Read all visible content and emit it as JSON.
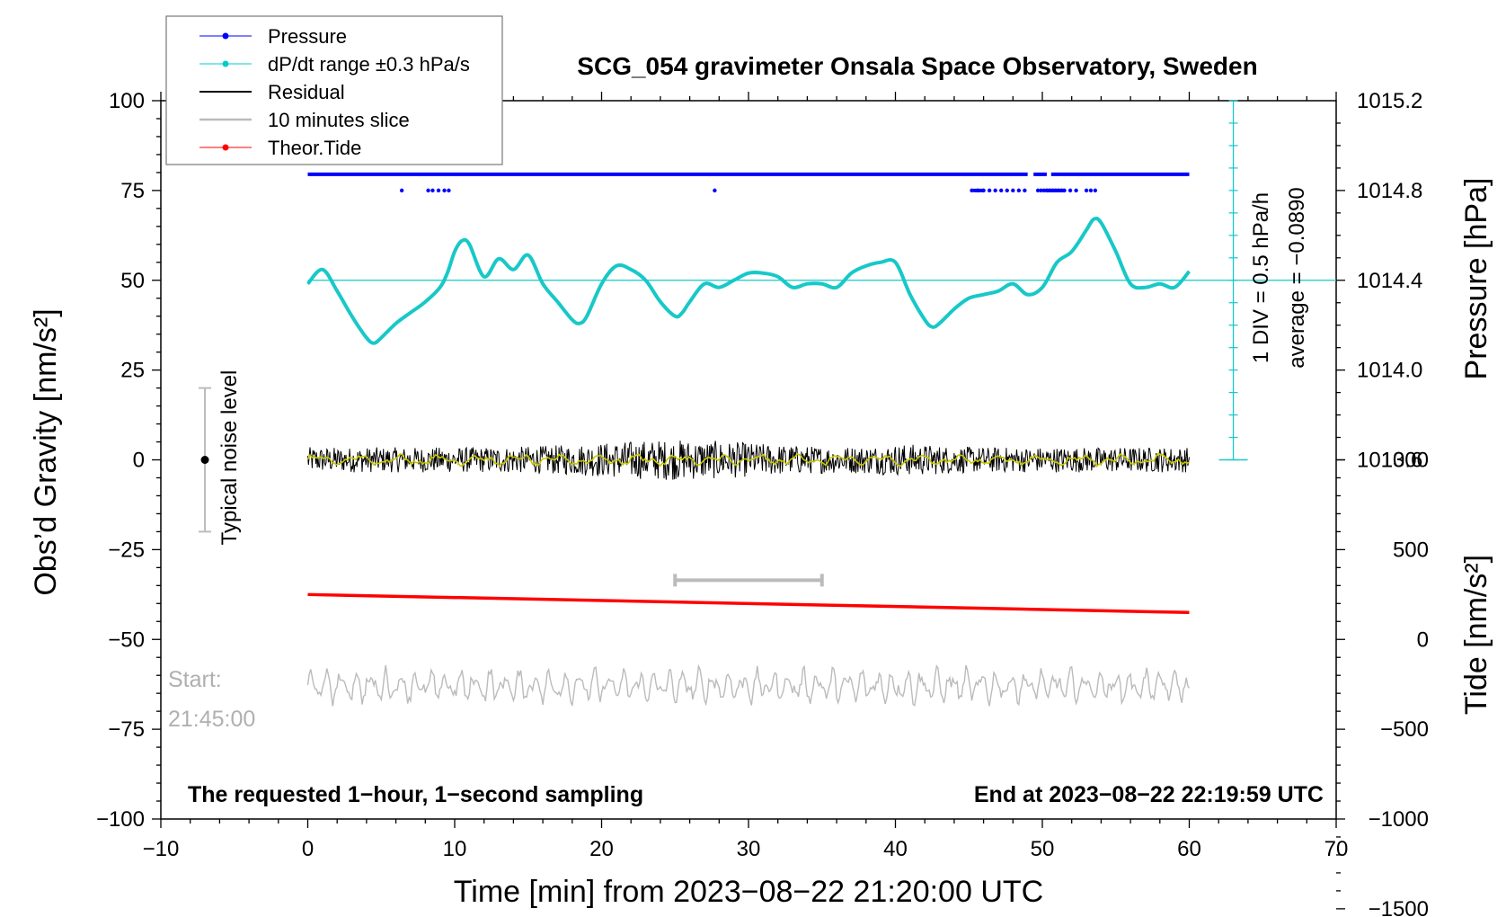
{
  "chart_data": {
    "type": "line",
    "title": "SCG_054 gravimeter Onsala Space Observatory, Sweden",
    "xlabel": "Time [min] from 2023−08−22 21:20:00 UTC",
    "ylabel": "Obs’d Gravity [nm/s²]",
    "ylabel_right_top": "Pressure [hPa]",
    "ylabel_right_bottom": "Tide [nm/s²]",
    "xlim": [
      -10,
      70
    ],
    "ylim": [
      -100,
      100
    ],
    "xticks": [
      -10,
      0,
      10,
      20,
      30,
      40,
      50,
      60,
      70
    ],
    "xtick_labels": [
      "−10",
      "0",
      "10",
      "20",
      "30",
      "40",
      "50",
      "60",
      "70"
    ],
    "yticks": [
      100,
      75,
      50,
      25,
      0,
      -25,
      -50,
      -75,
      -100
    ],
    "ytick_labels": [
      "100",
      "75",
      "50",
      "25",
      "0",
      "−25",
      "−50",
      "−75",
      "−100"
    ],
    "pressure_axis": {
      "ticks": [
        1015.2,
        1014.8,
        1014.4,
        1014.0,
        1013.6
      ],
      "tick_labels": [
        "1015.2",
        "1014.8",
        "1014.4",
        "1014.0",
        "1013.6"
      ],
      "gravity_at_1014_4": 50,
      "gravity_per_hpa": 62.5
    },
    "tide_axis": {
      "ticks": [
        1000,
        500,
        0,
        -500,
        -1000,
        -1500
      ],
      "tick_labels": [
        "1000",
        "500",
        "0",
        "−500",
        "−1000",
        "−1500"
      ],
      "gravity_at_0": -50,
      "gravity_per_unit": 0.05
    },
    "legend": [
      {
        "label": "Pressure",
        "color": "#0000ff",
        "marker": true
      },
      {
        "label": "dP/dt range ±0.3 hPa/s",
        "color": "#00cccc",
        "marker": true
      },
      {
        "label": "Residual",
        "color": "#000000",
        "marker": false
      },
      {
        "label": "10 minutes slice",
        "color": "#bbbbbb",
        "marker": false
      },
      {
        "label": "Theor.Tide",
        "color": "#ff0000",
        "marker": true
      }
    ],
    "series": [
      {
        "name": "Pressure",
        "color": "#18c8c8",
        "x": [
          0,
          1,
          2,
          3,
          4,
          4.5,
          5,
          6,
          7,
          8,
          9,
          9.5,
          10,
          10.5,
          11,
          12,
          13,
          14,
          15,
          16,
          17,
          18,
          18.5,
          19,
          20,
          21,
          22,
          23,
          24,
          25,
          25.5,
          26,
          27,
          28,
          29,
          30,
          31,
          32,
          33,
          34,
          35,
          36,
          37,
          38,
          39,
          40,
          41,
          42,
          42.5,
          43,
          44,
          45,
          46,
          47,
          48,
          49,
          50,
          51,
          52,
          53,
          53.5,
          54,
          55,
          56,
          57,
          58,
          59,
          60
        ],
        "values": [
          49,
          53,
          47,
          40,
          34,
          32.5,
          34,
          38,
          41,
          44,
          48,
          52,
          58,
          61,
          60,
          51,
          56,
          53,
          57,
          49,
          44,
          39,
          38,
          40,
          49,
          54,
          53,
          50,
          44,
          40,
          41,
          44,
          49,
          48,
          50,
          52,
          52,
          51,
          48,
          49,
          49,
          48,
          52,
          54,
          55,
          55,
          46,
          39,
          37,
          38,
          42,
          45,
          46,
          47,
          49,
          46,
          48,
          55,
          58,
          64,
          67,
          66,
          58,
          49,
          48,
          49,
          48,
          52.5
        ]
      },
      {
        "name": "Residual",
        "color": "#000000",
        "x_start": 0,
        "x_end": 60,
        "amplitude": 3.5
      },
      {
        "name": "Residual smoothed",
        "color": "#c8c800",
        "x_start": 0,
        "x_end": 60,
        "amplitude": 1.5
      },
      {
        "name": "Theor.Tide",
        "color": "#ff0000",
        "x": [
          0,
          60
        ],
        "values": [
          -37.5,
          -42.5
        ]
      },
      {
        "name": "10 minutes slice",
        "color": "#bbbbbb",
        "x_start": 0,
        "x_end": 60,
        "center": -63,
        "amplitude": 4.5
      }
    ],
    "pressure_dots": {
      "color": "#0000ff",
      "main_y": 79.5,
      "main_x": [
        0,
        60
      ],
      "main_gaps": [
        [
          49,
          49.4
        ],
        [
          50.3,
          50.6
        ]
      ],
      "low_y": 75,
      "low_x": [
        6.4,
        8.2,
        8.5,
        8.9,
        9.3,
        9.6,
        27.7,
        45.2,
        45.6,
        46.0,
        46.4,
        46.8,
        47.2,
        47.6,
        48.0,
        48.4,
        48.8,
        49.7,
        49.9,
        50.1,
        50.3,
        50.5,
        50.7,
        50.9,
        51.1,
        51.3,
        51.5,
        51.9,
        52.3,
        53.0,
        53.3,
        53.6
      ]
    },
    "noise_bar": {
      "x": -7,
      "center": 0,
      "range": [
        -20,
        20
      ],
      "label": "Typical noise level"
    },
    "slice_bracket": {
      "x_range": [
        25,
        35
      ],
      "y": -33.5
    },
    "dpdt_scale": {
      "x": 63,
      "y_top": 100,
      "y_bottom": 0,
      "label_div": "1 DIV = 0.5 hPa/h",
      "label_avg": "average = −0.0890",
      "reference_y": 50
    },
    "annotations": {
      "start_label": "Start:",
      "start_time": "21:45:00",
      "bottom_left": "The requested 1−hour, 1−second sampling",
      "bottom_right": "End at 2023−08−22 22:19:59 UTC"
    }
  }
}
